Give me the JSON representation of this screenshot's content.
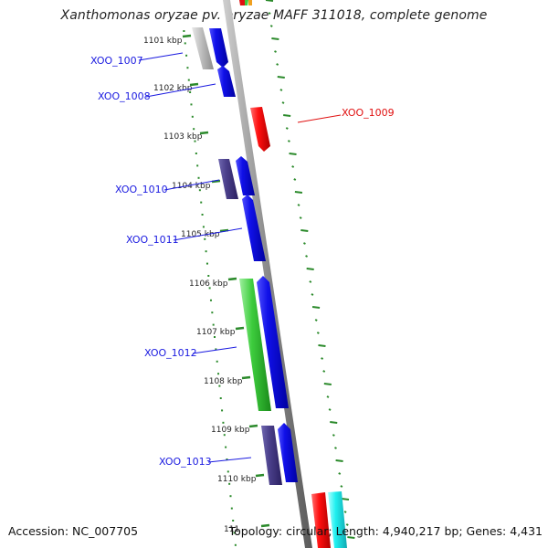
{
  "title": "Xanthomonas oryzae pv. oryzae MAFF 311018, complete genome",
  "accession": "Accession: NC_007705",
  "summary": "Topology: circular; Length: 4,940,217 bp; Genes: 4,431",
  "colors": {
    "backbone": "#8a8a8a",
    "tick": "#2b8a2b",
    "forward": "#1010e8",
    "reverse_dark": "#4a3f8a",
    "grey": "#b8b8b8",
    "red": "#ff1010",
    "green": "#3dcc3d",
    "cyan": "#20f0f0",
    "orange": "#f0a020",
    "label_blue": "#1a1ae0",
    "label_red": "#e01010"
  },
  "kbp_ticks": [
    {
      "id": "1101",
      "label": "1101 kbp"
    },
    {
      "id": "1102",
      "label": "1102 kbp"
    },
    {
      "id": "1103",
      "label": "1103 kbp"
    },
    {
      "id": "1104",
      "label": "1104 kbp"
    },
    {
      "id": "1105",
      "label": "1105 kbp"
    },
    {
      "id": "1106",
      "label": "1106 kbp"
    },
    {
      "id": "1107",
      "label": "1107 kbp"
    },
    {
      "id": "1108",
      "label": "1108 kbp"
    },
    {
      "id": "1109",
      "label": "1109 kbp"
    },
    {
      "id": "1110",
      "label": "1110 kbp"
    },
    {
      "id": "1111",
      "label": "111"
    }
  ],
  "genes": [
    {
      "id": "XOO_1007",
      "label": "XOO_1007"
    },
    {
      "id": "XOO_1008",
      "label": "XOO_1008"
    },
    {
      "id": "XOO_1009",
      "label": "XOO_1009"
    },
    {
      "id": "XOO_1010",
      "label": "XOO_1010"
    },
    {
      "id": "XOO_1011",
      "label": "XOO_1011"
    },
    {
      "id": "XOO_1012",
      "label": "XOO_1012"
    },
    {
      "id": "XOO_1013",
      "label": "XOO_1013"
    }
  ]
}
